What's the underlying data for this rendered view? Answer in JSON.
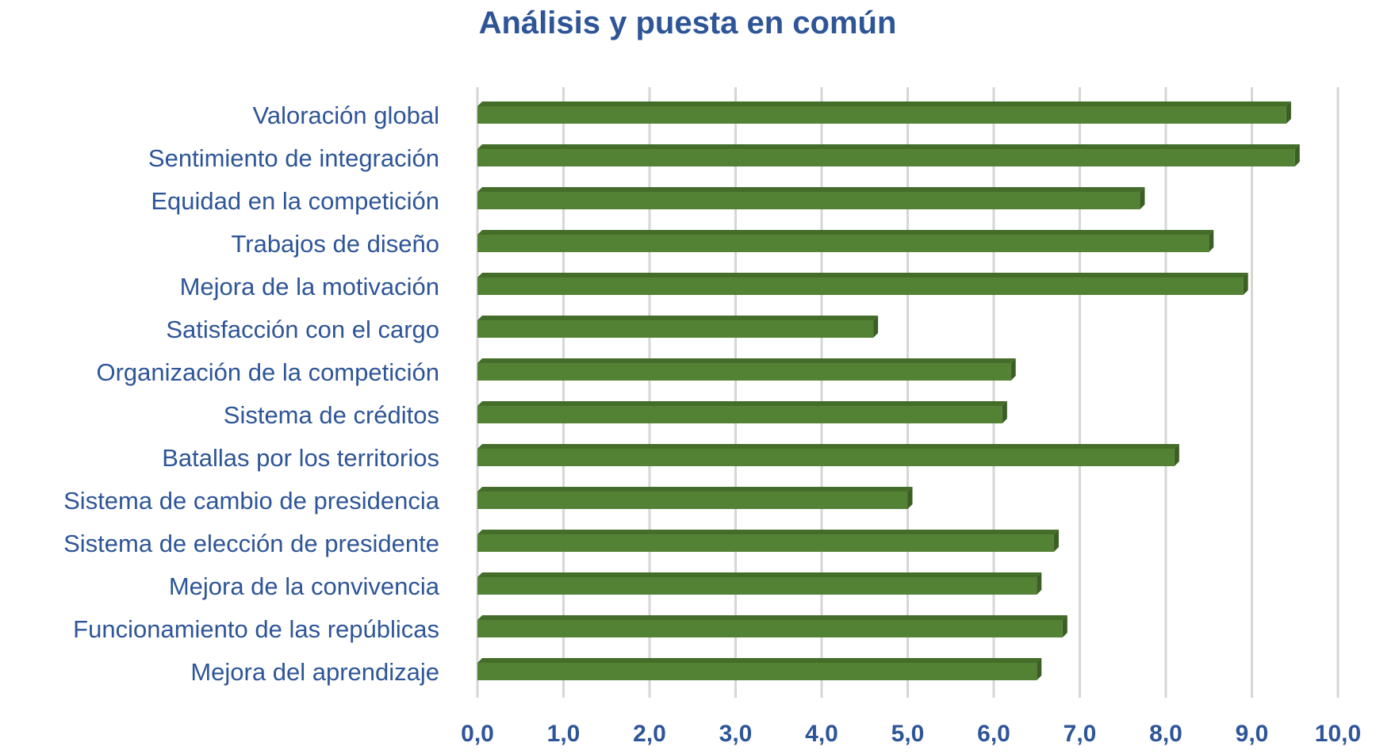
{
  "chart_data": {
    "type": "bar",
    "orientation": "horizontal",
    "title": "Análisis y puesta en común",
    "xlabel": "",
    "ylabel": "",
    "xlim": [
      0,
      10
    ],
    "ticks": [
      0,
      1,
      2,
      3,
      4,
      5,
      6,
      7,
      8,
      9,
      10
    ],
    "tick_labels": [
      "0,0",
      "1,0",
      "2,0",
      "3,0",
      "4,0",
      "5,0",
      "6,0",
      "7,0",
      "8,0",
      "9,0",
      "10,0"
    ],
    "grid": true,
    "legend": "none",
    "bar_color": "#548235",
    "bar_side_color": "#3b5e24",
    "bar_top_color": "#456d2a",
    "text_color": "#2e5597",
    "categories": [
      "Valoración global",
      "Sentimiento de integración",
      "Equidad en la competición",
      "Trabajos de diseño",
      "Mejora de la motivación",
      "Satisfacción con el cargo",
      "Organización de la competición",
      "Sistema de créditos",
      "Batallas por los territorios",
      "Sistema de cambio de presidencia",
      "Sistema de elección de presidente",
      "Mejora de la convivencia",
      "Funcionamiento de las repúblicas",
      "Mejora del aprendizaje"
    ],
    "values": [
      9.4,
      9.5,
      7.7,
      8.5,
      8.9,
      4.6,
      6.2,
      6.1,
      8.1,
      5.0,
      6.7,
      6.5,
      6.8,
      6.5
    ]
  }
}
